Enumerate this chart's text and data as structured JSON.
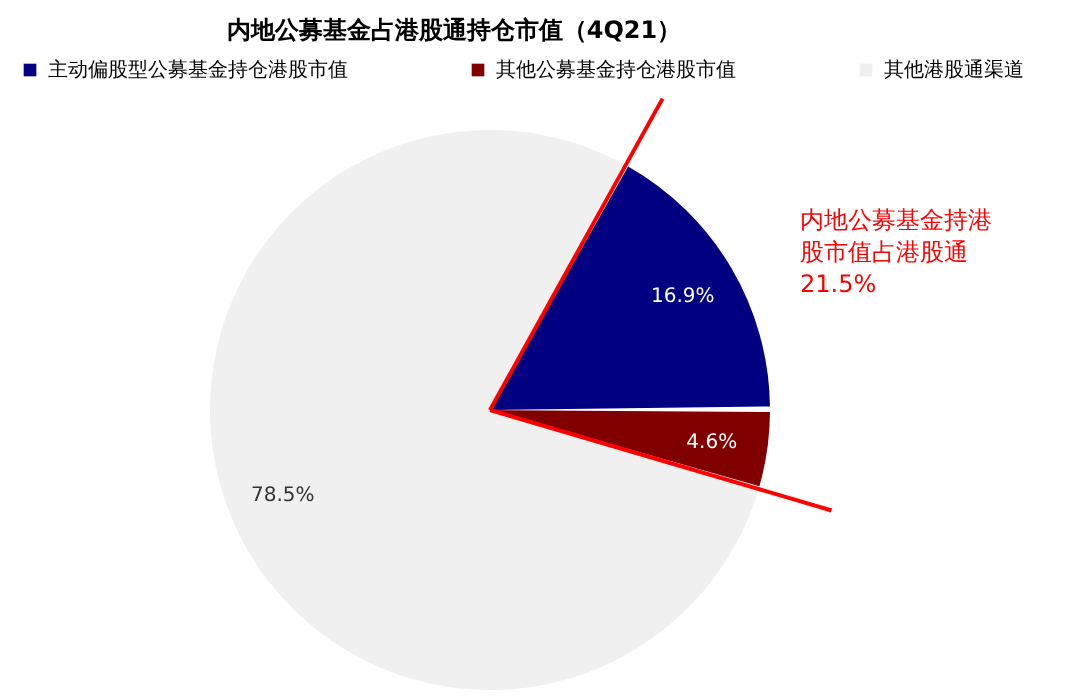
{
  "chart_data": {
    "type": "pie",
    "title": "内地公募基金占港股通持仓市值（4Q21）",
    "categories": [
      "主动偏股型公募基金持仓港股市值",
      "其他公募基金持仓港股市值",
      "其他港股通渠道"
    ],
    "values": [
      16.9,
      4.6,
      78.5
    ],
    "colors": [
      "#000080",
      "#800000",
      "#f0f0f0"
    ],
    "value_labels": [
      "16.9%",
      "4.6%",
      "78.5%"
    ],
    "annotations": [
      "内地公募基金持港股市值占港股通21.5%"
    ],
    "legend": "top"
  }
}
